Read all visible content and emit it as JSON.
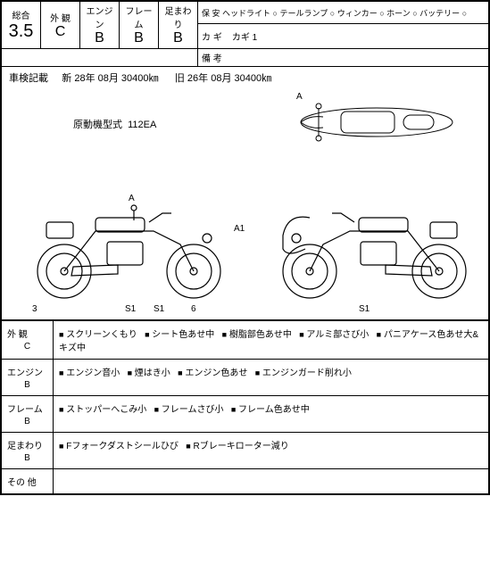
{
  "header": {
    "labels": {
      "overall": "総合",
      "exterior": "外 観",
      "engine": "エンジン",
      "frame": "フレーム",
      "suspension": "足まわり"
    },
    "grades": {
      "overall": "3.5",
      "exterior": "C",
      "engine": "B",
      "frame": "B",
      "suspension": "B"
    },
    "safety_row": {
      "label": "保 安",
      "items": [
        "ヘッドライト",
        "テールランプ",
        "ウィンカー",
        "ホーン",
        "バッテリー"
      ]
    },
    "key_row": {
      "label": "カ ギ",
      "value": "カギ 1"
    },
    "remarks_row": {
      "label": "備 考",
      "value": ""
    }
  },
  "inspection_line": {
    "label": "車検記載",
    "new": "新 28年 08月  30400㎞",
    "old": "旧 26年 08月  30400㎞"
  },
  "engine_type": {
    "label": "原動機型式",
    "value": "112EA"
  },
  "markers": {
    "top_a": "A",
    "left_a": "A",
    "left_a1": "A1",
    "left_3": "3",
    "left_s1a": "S1",
    "left_s1b": "S1",
    "left_6": "6",
    "right_s1": "S1"
  },
  "sections": {
    "exterior": {
      "label": "外 観",
      "grade": "C",
      "items": [
        "スクリーンくもり",
        "シート色あせ中",
        "樹脂部色あせ中",
        "アルミ部さび小",
        "パニアケース色あせ大&キズ中"
      ]
    },
    "engine": {
      "label": "エンジン",
      "grade": "B",
      "items": [
        "エンジン音小",
        "煙はき小",
        "エンジン色あせ",
        "エンジンガード削れ小"
      ]
    },
    "frame": {
      "label": "フレーム",
      "grade": "B",
      "items": [
        "ストッパーへこみ小",
        "フレームさび小",
        "フレーム色あせ中"
      ]
    },
    "suspension": {
      "label": "足まわり",
      "grade": "B",
      "items": [
        "Fフォークダストシールひび",
        "Rブレーキローター減り"
      ]
    },
    "other": {
      "label": "その 他",
      "grade": "",
      "items": []
    }
  },
  "colors": {
    "line": "#000000",
    "bg": "#ffffff"
  }
}
